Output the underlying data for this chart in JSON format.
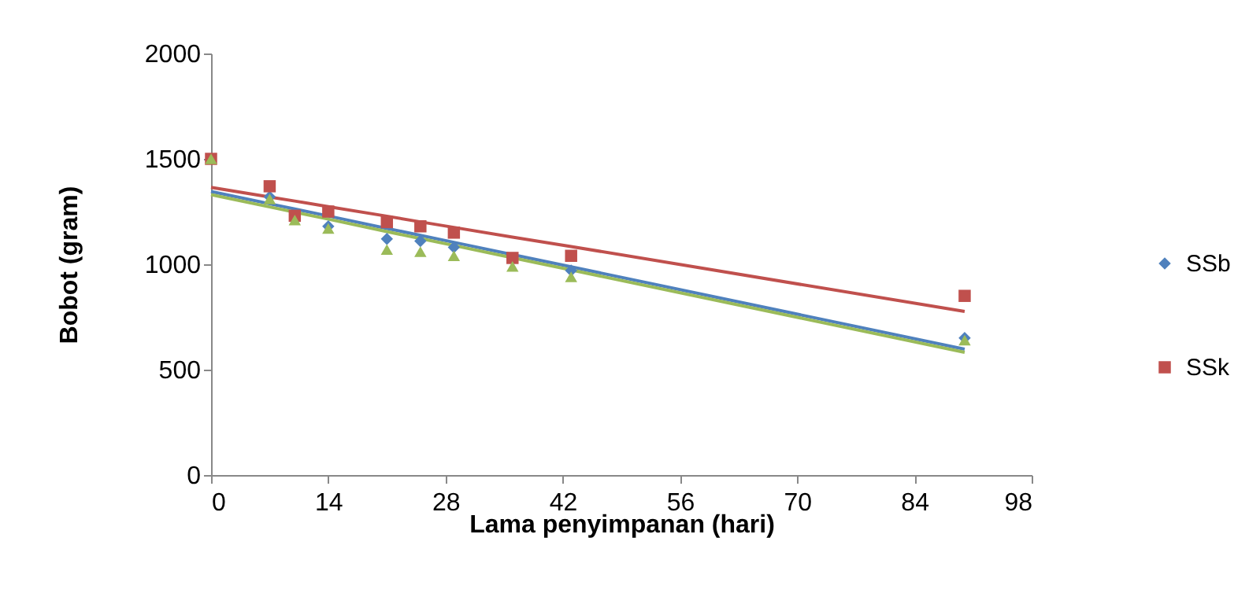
{
  "chart_data": {
    "type": "scatter",
    "xlabel": "Lama penyimpanan (hari)",
    "ylabel": "Bobot (gram)",
    "x": [
      0,
      7,
      10,
      14,
      21,
      25,
      29,
      36,
      43,
      90
    ],
    "series": [
      {
        "name": "SSb",
        "color": "#4f81bd",
        "marker": "diamond",
        "values": [
          null,
          1320,
          null,
          1180,
          1120,
          1110,
          1080,
          null,
          970,
          650
        ]
      },
      {
        "name": "SSk",
        "color": "#c0504d",
        "marker": "square",
        "values": [
          1500,
          1370,
          1230,
          1250,
          1200,
          1180,
          1150,
          1030,
          1040,
          850
        ]
      },
      {
        "color": "#9bbb59",
        "marker": "triangle",
        "values": [
          1500,
          1310,
          1210,
          1170,
          1070,
          1060,
          1040,
          990,
          940,
          640
        ]
      },
      {
        "type": "line",
        "color": "#4f81bd",
        "values": [
          1345,
          1287,
          1262,
          1229,
          1170,
          1137,
          1104,
          1046,
          988,
          597
        ]
      },
      {
        "type": "line",
        "color": "#c0504d",
        "values": [
          1365,
          1319,
          1300,
          1273,
          1228,
          1201,
          1175,
          1129,
          1084,
          776
        ]
      },
      {
        "type": "line",
        "color": "#9bbb59",
        "values": [
          1330,
          1272,
          1247,
          1214,
          1155,
          1122,
          1089,
          1031,
          973,
          582
        ]
      }
    ],
    "xlim": [
      0,
      98
    ],
    "xticks": [
      0,
      14,
      28,
      42,
      56,
      70,
      84,
      98
    ],
    "ylim": [
      0,
      2000
    ],
    "yticks": [
      0,
      500,
      1000,
      1500,
      2000
    ],
    "grid": false,
    "legend": "right"
  }
}
